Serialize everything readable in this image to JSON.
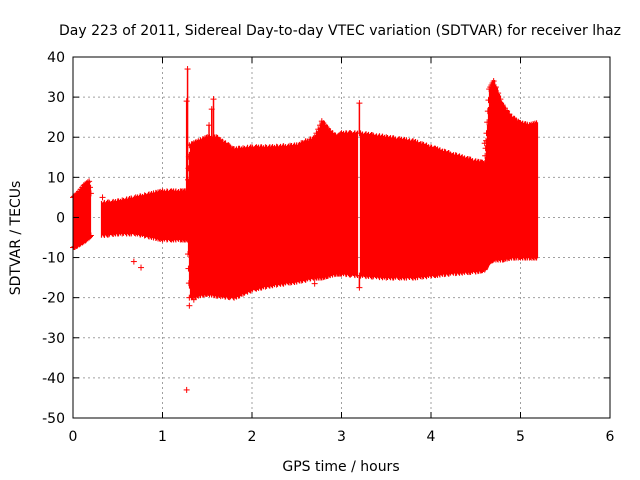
{
  "chart_data": {
    "type": "scatter",
    "title": "Day 223 of 2011, Sidereal Day-to-day VTEC variation (SDTVAR) for receiver lhaz",
    "xlabel": "GPS time / hours",
    "ylabel": "SDTVAR / TECUs",
    "xlim": [
      0,
      6
    ],
    "ylim": [
      -50,
      40
    ],
    "xticks": [
      0,
      1,
      2,
      3,
      4,
      5,
      6
    ],
    "yticks": [
      -50,
      -40,
      -30,
      -20,
      -10,
      0,
      10,
      20,
      30,
      40
    ],
    "grid": true,
    "legend": "none",
    "color": "#ff0000",
    "marker": "plus",
    "envelope": {
      "x": [
        0.0,
        0.05,
        0.12,
        0.18,
        0.22,
        0.3,
        0.5,
        0.7,
        0.9,
        1.0,
        1.2,
        1.28,
        1.3,
        1.4,
        1.5,
        1.6,
        1.8,
        2.0,
        2.2,
        2.5,
        2.7,
        2.78,
        2.85,
        2.95,
        3.0,
        3.2,
        3.5,
        3.8,
        4.0,
        4.2,
        4.5,
        4.6,
        4.62,
        4.65,
        4.7,
        4.8,
        4.9,
        5.0,
        5.1,
        5.18
      ],
      "upper": [
        5.0,
        6.0,
        8.0,
        9.0,
        3.0,
        3.5,
        4.0,
        5.0,
        6.0,
        6.5,
        6.5,
        6.5,
        18.0,
        19.0,
        20.0,
        20.0,
        17.0,
        17.5,
        17.5,
        18.0,
        20.0,
        24.0,
        22.0,
        20.0,
        21.0,
        21.0,
        20.0,
        19.0,
        17.5,
        16.0,
        14.0,
        13.5,
        21.0,
        32.0,
        34.0,
        28.0,
        25.0,
        23.5,
        23.0,
        23.5
      ],
      "lower": [
        -7.5,
        -7.0,
        -6.0,
        -5.0,
        -4.0,
        -4.5,
        -4.0,
        -4.0,
        -5.0,
        -5.5,
        -5.5,
        -5.5,
        -20.0,
        -19.5,
        -19.0,
        -19.5,
        -20.0,
        -18.0,
        -17.0,
        -16.0,
        -15.0,
        -15.0,
        -14.5,
        -14.0,
        -14.0,
        -14.5,
        -15.0,
        -15.0,
        -14.5,
        -14.0,
        -13.5,
        -13.0,
        -12.0,
        -11.0,
        -10.5,
        -10.5,
        -10.0,
        -10.0,
        -10.0,
        -10.0
      ]
    },
    "gaps": [
      [
        0.2,
        0.31
      ],
      [
        3.18,
        3.2
      ]
    ],
    "spikes": [
      {
        "x": 1.28,
        "y": 37.0
      },
      {
        "x": 1.27,
        "y": 29.0
      },
      {
        "x": 1.52,
        "y": 23.0
      },
      {
        "x": 1.55,
        "y": 27.0
      },
      {
        "x": 1.57,
        "y": 29.5
      },
      {
        "x": 3.2,
        "y": 28.5
      },
      {
        "x": 3.2,
        "y": -17.5
      }
    ],
    "outliers": [
      {
        "x": 0.33,
        "y": 5.0
      },
      {
        "x": 0.68,
        "y": -11.0
      },
      {
        "x": 0.76,
        "y": -12.5
      },
      {
        "x": 1.27,
        "y": -43.0
      },
      {
        "x": 1.3,
        "y": -22.0
      },
      {
        "x": 1.35,
        "y": -20.5
      },
      {
        "x": 2.7,
        "y": -16.5
      },
      {
        "x": 4.6,
        "y": 18.5
      }
    ]
  }
}
